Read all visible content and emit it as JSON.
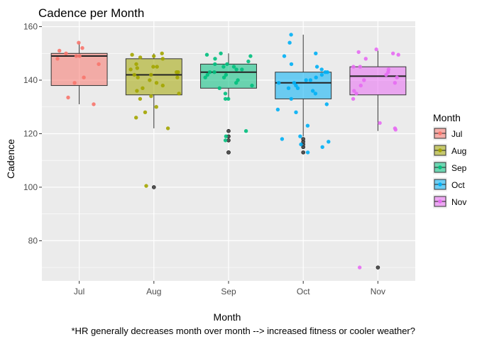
{
  "chart_data": {
    "type": "boxplot",
    "title": "Cadence per Month",
    "xlabel": "Month",
    "ylabel": "Cadence",
    "caption": "*HR generally decreases month over month --> increased fitness or cooler weather?",
    "categories": [
      "Jul",
      "Aug",
      "Sep",
      "Oct",
      "Nov"
    ],
    "ylim": [
      65,
      162
    ],
    "yticks": [
      80,
      100,
      120,
      140,
      160
    ],
    "grid": true,
    "legend": {
      "title": "Month",
      "placement": "right"
    },
    "colors": {
      "Jul": "#F8766D",
      "Aug": "#A3A500",
      "Sep": "#00BF7D",
      "Oct": "#00B0F6",
      "Nov": "#E76BF3",
      "panel": "#EBEBEB",
      "gridline": "#FFFFFF"
    },
    "boxes": [
      {
        "month": "Jul",
        "whisker_low": 131,
        "q1": 138,
        "median": 149,
        "q3": 150,
        "whisker_high": 154,
        "outliers": []
      },
      {
        "month": "Aug",
        "whisker_low": 122,
        "q1": 134.5,
        "median": 142,
        "q3": 148,
        "whisker_high": 150,
        "outliers": [
          100
        ]
      },
      {
        "month": "Sep",
        "whisker_low": 133,
        "q1": 137,
        "median": 143,
        "q3": 146,
        "whisker_high": 150,
        "outliers": [
          113,
          113,
          117.5,
          119,
          121
        ]
      },
      {
        "month": "Oct",
        "whisker_low": 119,
        "q1": 133,
        "median": 139,
        "q3": 143,
        "whisker_high": 157,
        "outliers": [
          113,
          115,
          116,
          117,
          118
        ]
      },
      {
        "month": "Nov",
        "whisker_low": 121,
        "q1": 134.5,
        "median": 141.5,
        "q3": 145,
        "whisker_high": 151,
        "outliers": [
          70
        ]
      }
    ],
    "points": [
      {
        "month": "Jul",
        "values": [
          154,
          152,
          151,
          150,
          149,
          149,
          148,
          146,
          141,
          139,
          133.5,
          131
        ]
      },
      {
        "month": "Aug",
        "values": [
          150,
          149.5,
          149,
          148.5,
          148,
          146,
          145,
          145,
          144.5,
          144,
          143,
          143,
          142,
          142,
          141,
          141,
          140,
          139,
          138,
          137,
          136,
          135,
          134,
          133,
          130,
          128,
          126,
          122,
          100.5
        ]
      },
      {
        "month": "Sep",
        "values": [
          150,
          149.5,
          149,
          148,
          147,
          146,
          146,
          145,
          145,
          144,
          144,
          143,
          143,
          142,
          142,
          141,
          141,
          140,
          139,
          138,
          137,
          135,
          133,
          133,
          121,
          119,
          117.5
        ]
      },
      {
        "month": "Oct",
        "values": [
          157,
          154,
          150,
          149,
          146,
          145,
          144,
          143,
          143,
          142,
          141,
          140,
          140,
          139,
          139,
          138,
          137,
          137,
          136,
          135,
          133,
          131,
          129,
          128,
          123,
          119,
          118,
          117,
          116,
          115,
          113
        ]
      },
      {
        "month": "Nov",
        "values": [
          151.5,
          150.5,
          150,
          149.5,
          148,
          145,
          145,
          144,
          143,
          142,
          141,
          140,
          139,
          138,
          136,
          135,
          133,
          124,
          122,
          121.5,
          70
        ]
      }
    ]
  }
}
